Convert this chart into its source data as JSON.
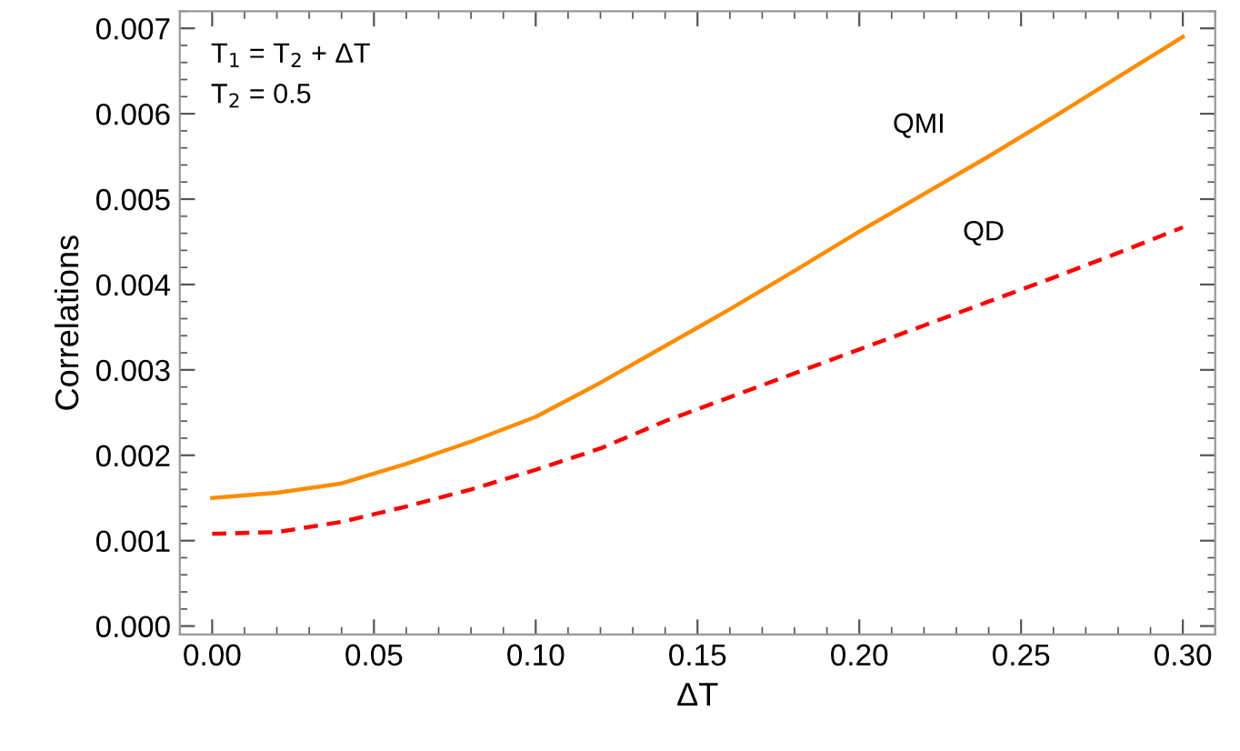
{
  "chart_data": {
    "type": "line",
    "xlabel": "ΔT",
    "ylabel": "Correlations",
    "x": [
      0,
      0.02,
      0.04,
      0.06,
      0.08,
      0.1,
      0.12,
      0.14,
      0.16,
      0.18,
      0.2,
      0.22,
      0.24,
      0.26,
      0.28,
      0.3
    ],
    "series": [
      {
        "name": "QMI",
        "color": "#ff8c00",
        "line_style": "solid",
        "values": [
          0.0015,
          0.00156,
          0.00167,
          0.0019,
          0.00216,
          0.00245,
          0.00285,
          0.00328,
          0.00371,
          0.00416,
          0.00462,
          0.00506,
          0.0055,
          0.00596,
          0.00643,
          0.0069
        ]
      },
      {
        "name": "QD",
        "color": "#ff0000",
        "line_style": "dashed",
        "values": [
          0.00108,
          0.0011,
          0.00122,
          0.0014,
          0.0016,
          0.00183,
          0.00208,
          0.0024,
          0.00268,
          0.00296,
          0.00324,
          0.00352,
          0.0038,
          0.00408,
          0.00437,
          0.00467
        ]
      }
    ],
    "annotations": [
      "T$_{1}$ = T$_{2}$ + ΔT",
      "T$_{2}$ = 0.5"
    ],
    "xlim": [
      -0.01,
      0.31
    ],
    "xticks": [
      {
        "value": 0,
        "label": "0.00"
      },
      {
        "value": 0.05,
        "label": "0.05"
      },
      {
        "value": 0.1,
        "label": "0.10"
      },
      {
        "value": 0.15,
        "label": "0.15"
      },
      {
        "value": 0.2,
        "label": "0.20"
      },
      {
        "value": 0.25,
        "label": "0.25"
      },
      {
        "value": 0.3,
        "label": "0.30"
      }
    ],
    "ylim": [
      -0.0001,
      0.0072
    ],
    "yticks": [
      {
        "value": 0,
        "label": "0.000"
      },
      {
        "value": 0.001,
        "label": "0.001"
      },
      {
        "value": 0.002,
        "label": "0.002"
      },
      {
        "value": 0.003,
        "label": "0.003"
      },
      {
        "value": 0.004,
        "label": "0.004"
      },
      {
        "value": 0.005,
        "label": "0.005"
      },
      {
        "value": 0.006,
        "label": "0.006"
      },
      {
        "value": 0.007,
        "label": "0.007"
      }
    ],
    "grid": false,
    "legend": false,
    "marker": "none"
  }
}
